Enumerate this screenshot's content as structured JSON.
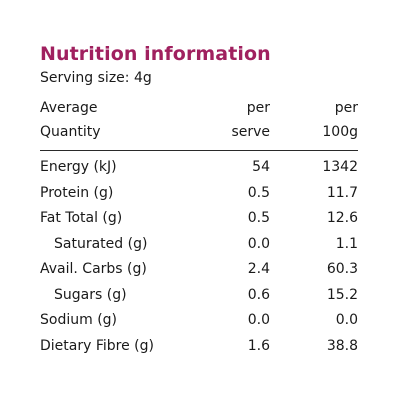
{
  "title": "Nutrition information",
  "serving": "Serving size: 4g",
  "header": {
    "col1": [
      "Average",
      "Quantity"
    ],
    "col2": [
      "per",
      "serve"
    ],
    "col3": [
      "per",
      "100g"
    ]
  },
  "rows": [
    {
      "name": "Energy (kJ)",
      "per_serve": "54",
      "per_100g": "1342"
    },
    {
      "name": "Protein (g)",
      "per_serve": "0.5",
      "per_100g": "11.7"
    },
    {
      "name": "Fat Total (g)",
      "per_serve": "0.5",
      "per_100g": "12.6"
    },
    {
      "name": "Saturated (g)",
      "per_serve": "0.0",
      "per_100g": "1.1"
    },
    {
      "name": "Avail. Carbs (g)",
      "per_serve": "2.4",
      "per_100g": "60.3"
    },
    {
      "name": "Sugars (g)",
      "per_serve": "0.6",
      "per_100g": "15.2"
    },
    {
      "name": "Sodium (g)",
      "per_serve": "0.0",
      "per_100g": "0.0"
    },
    {
      "name": "Dietary Fibre (g)",
      "per_serve": "1.6",
      "per_100g": "38.8"
    }
  ],
  "colors": {
    "title": "#a0205f",
    "text": "#1a1a1a",
    "rule": "#2a2a2a"
  }
}
